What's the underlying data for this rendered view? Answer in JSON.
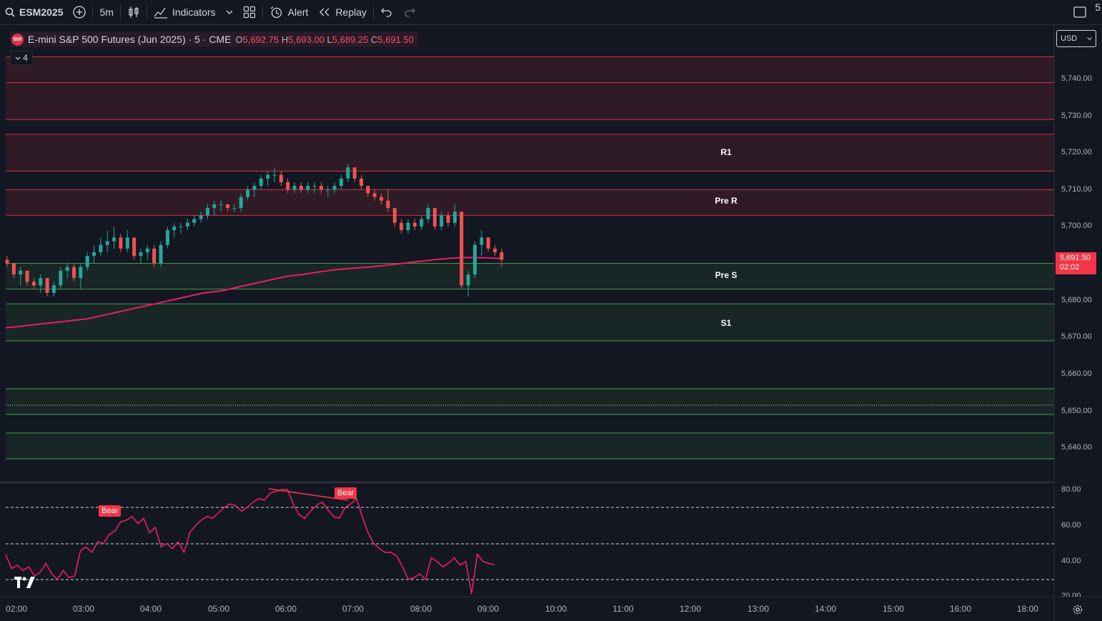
{
  "toolbar": {
    "symbol": "ESM2025",
    "interval": "5m",
    "indicators_label": "Indicators",
    "alert_label": "Alert",
    "replay_label": "Replay",
    "right_cut_text": "5"
  },
  "legend": {
    "badge": "500",
    "title": "E-mini S&P 500 Futures (Jun 2025) · 5 · CME",
    "open_key": "O",
    "open": "5,692.75",
    "high_key": "H",
    "high": "5,693.00",
    "low_key": "L",
    "low": "5,689.25",
    "close_key": "C",
    "close": "5,691.50",
    "collapse_count": "4"
  },
  "currency": "USD",
  "price_tag": {
    "price": "5,691.50",
    "countdown": "02:02"
  },
  "levels": {
    "r1": "R1",
    "pre_r": "Pre R",
    "pre_s": "Pre S",
    "s1": "S1"
  },
  "bear_labels": [
    "Bear",
    "Bear"
  ],
  "price_axis": [
    "5,740.00",
    "5,730.00",
    "5,720.00",
    "5,710.00",
    "5,700.00",
    "5,680.00",
    "5,670.00",
    "5,660.00",
    "5,650.00",
    "5,640.00"
  ],
  "osc_axis": [
    "80.00",
    "60.00",
    "40.00",
    "20.00"
  ],
  "time_axis": [
    "02:00",
    "03:00",
    "04:00",
    "05:00",
    "06:00",
    "07:00",
    "08:00",
    "09:00",
    "10:00",
    "11:00",
    "12:00",
    "13:00",
    "14:00",
    "15:00",
    "16:00",
    "18:00"
  ],
  "colors": {
    "up": "#26a69a",
    "down": "#ef5350",
    "vwap": "#e91e63",
    "resistance_line": "#f23645",
    "support_line": "#4caf50"
  },
  "chart_data": {
    "type": "candlestick",
    "ylim": [
      5634,
      5752
    ],
    "candles": [
      [
        5691,
        5692,
        5689,
        5690
      ],
      [
        5690,
        5690,
        5686,
        5687
      ],
      [
        5687,
        5689,
        5684,
        5688
      ],
      [
        5688,
        5688,
        5684,
        5685
      ],
      [
        5685,
        5686,
        5683,
        5684
      ],
      [
        5684,
        5687,
        5682,
        5686
      ],
      [
        5686,
        5686,
        5681,
        5682
      ],
      [
        5682,
        5685,
        5681,
        5684
      ],
      [
        5684,
        5689,
        5683,
        5688
      ],
      [
        5688,
        5690,
        5686,
        5689
      ],
      [
        5689,
        5690,
        5685,
        5686
      ],
      [
        5686,
        5690,
        5683,
        5689
      ],
      [
        5689,
        5693,
        5688,
        5692
      ],
      [
        5692,
        5695,
        5690,
        5693
      ],
      [
        5693,
        5697,
        5692,
        5695
      ],
      [
        5695,
        5699,
        5693,
        5696
      ],
      [
        5696,
        5700,
        5694,
        5697
      ],
      [
        5697,
        5698,
        5693,
        5694
      ],
      [
        5694,
        5699,
        5693,
        5697
      ],
      [
        5697,
        5697,
        5691,
        5692
      ],
      [
        5692,
        5694,
        5690,
        5693
      ],
      [
        5693,
        5695,
        5691,
        5694
      ],
      [
        5694,
        5695,
        5689,
        5690
      ],
      [
        5690,
        5696,
        5689,
        5695
      ],
      [
        5695,
        5700,
        5694,
        5699
      ],
      [
        5699,
        5701,
        5697,
        5700
      ],
      [
        5700,
        5701,
        5698,
        5700
      ],
      [
        5700,
        5702,
        5699,
        5701
      ],
      [
        5701,
        5703,
        5700,
        5702
      ],
      [
        5702,
        5704,
        5701,
        5703
      ],
      [
        5703,
        5706,
        5702,
        5705
      ],
      [
        5705,
        5707,
        5703,
        5706
      ],
      [
        5706,
        5707,
        5704,
        5706
      ],
      [
        5706,
        5706,
        5704,
        5705
      ],
      [
        5705,
        5706,
        5704,
        5705
      ],
      [
        5705,
        5709,
        5704,
        5708
      ],
      [
        5708,
        5711,
        5707,
        5710
      ],
      [
        5710,
        5712,
        5708,
        5711
      ],
      [
        5711,
        5714,
        5710,
        5713
      ],
      [
        5713,
        5715,
        5711,
        5714
      ],
      [
        5714,
        5716,
        5712,
        5714
      ],
      [
        5714,
        5715,
        5711,
        5712
      ],
      [
        5712,
        5713,
        5709,
        5710
      ],
      [
        5710,
        5712,
        5709,
        5711
      ],
      [
        5711,
        5712,
        5709,
        5710
      ],
      [
        5710,
        5712,
        5709,
        5711
      ],
      [
        5711,
        5712,
        5709,
        5711
      ],
      [
        5711,
        5712,
        5709,
        5710
      ],
      [
        5710,
        5711,
        5708,
        5710
      ],
      [
        5710,
        5712,
        5709,
        5711
      ],
      [
        5711,
        5714,
        5710,
        5713
      ],
      [
        5713,
        5717,
        5712,
        5716
      ],
      [
        5716,
        5716,
        5712,
        5713
      ],
      [
        5713,
        5714,
        5710,
        5711
      ],
      [
        5711,
        5711,
        5708,
        5709
      ],
      [
        5709,
        5710,
        5707,
        5708
      ],
      [
        5708,
        5709,
        5706,
        5707
      ],
      [
        5707,
        5710,
        5704,
        5705
      ],
      [
        5705,
        5705,
        5700,
        5701
      ],
      [
        5701,
        5702,
        5698,
        5699
      ],
      [
        5699,
        5702,
        5698,
        5701
      ],
      [
        5701,
        5702,
        5699,
        5700
      ],
      [
        5700,
        5703,
        5699,
        5702
      ],
      [
        5702,
        5706,
        5701,
        5705
      ],
      [
        5705,
        5705,
        5699,
        5700
      ],
      [
        5700,
        5704,
        5699,
        5703
      ],
      [
        5703,
        5704,
        5700,
        5701
      ],
      [
        5701,
        5706,
        5700,
        5704
      ],
      [
        5704,
        5704,
        5683,
        5684
      ],
      [
        5684,
        5688,
        5681,
        5687
      ],
      [
        5687,
        5696,
        5686,
        5695
      ],
      [
        5695,
        5699,
        5692,
        5697
      ],
      [
        5697,
        5697,
        5693,
        5694
      ],
      [
        5694,
        5695,
        5692,
        5693
      ],
      [
        5693,
        5694,
        5689,
        5691
      ]
    ],
    "vwap": [
      5672.5,
      5673,
      5673.5,
      5674,
      5674.5,
      5675,
      5676,
      5677,
      5678,
      5679,
      5680,
      5681,
      5682,
      5682.5,
      5683.5,
      5684.5,
      5685.5,
      5686.5,
      5687,
      5687.7,
      5688.3,
      5688.7,
      5689,
      5689.5,
      5690,
      5690.5,
      5691,
      5691.4,
      5691.6,
      5691.5,
      5691.3
    ],
    "oscillator": [
      44,
      36,
      38,
      35,
      37,
      32,
      34,
      39,
      33,
      30,
      35,
      31,
      32,
      46,
      48,
      45,
      51,
      50,
      55,
      57,
      62,
      63,
      65,
      61,
      64,
      56,
      59,
      48,
      50,
      47,
      51,
      45,
      56,
      60,
      63,
      65,
      64,
      67,
      70,
      72,
      71,
      68,
      70,
      73,
      75,
      74,
      78,
      79,
      80,
      80,
      72,
      66,
      64,
      68,
      71,
      73,
      69,
      65,
      64,
      70,
      72,
      75,
      65,
      56,
      50,
      47,
      45,
      45,
      43,
      37,
      30,
      31,
      33,
      30,
      42,
      40,
      37,
      39,
      42,
      38,
      40,
      22,
      44,
      40,
      39,
      38
    ],
    "h_levels": [
      5746,
      5739,
      5729,
      5725,
      5715,
      5710,
      5703,
      5690,
      5683,
      5679,
      5669,
      5656,
      5649,
      5644,
      5637
    ]
  }
}
